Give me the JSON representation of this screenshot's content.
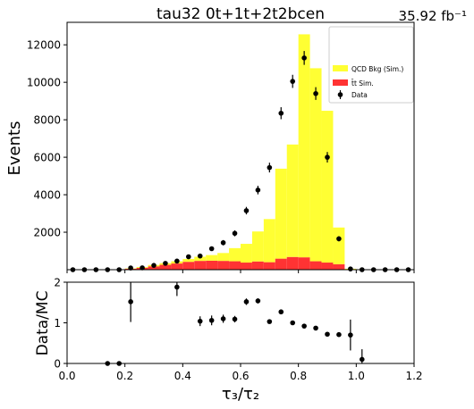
{
  "chart_data": [
    {
      "type": "bar",
      "title": "tau32  0t+1t+2t2bcen",
      "lumi": "35.92 fb⁻¹",
      "ylabel": "Events",
      "xlim": [
        0.0,
        1.2
      ],
      "ylim": [
        0,
        13200
      ],
      "yticks": [
        2000,
        4000,
        6000,
        8000,
        10000,
        12000
      ],
      "ytick_labels": [
        "2000",
        "4000",
        "6000",
        "8000",
        "10000",
        "12000"
      ],
      "legend_position": "top-right",
      "bin_edges": [
        0.0,
        0.04,
        0.08,
        0.12,
        0.16,
        0.2,
        0.24,
        0.28,
        0.32,
        0.36,
        0.4,
        0.44,
        0.48,
        0.52,
        0.56,
        0.6,
        0.64,
        0.68,
        0.72,
        0.76,
        0.8,
        0.84,
        0.88,
        0.92,
        0.96,
        1.0,
        1.04,
        1.08,
        1.12,
        1.16,
        1.2
      ],
      "series": [
        {
          "name": "QCD Bkg (Sim.)",
          "color": "#ffff33",
          "stacked": true,
          "values": [
            0,
            0,
            0,
            0,
            0,
            20,
            40,
            70,
            90,
            120,
            150,
            220,
            300,
            420,
            700,
            1000,
            1600,
            2300,
            4800,
            6000,
            11900,
            10300,
            8100,
            1960,
            40,
            0,
            0,
            0,
            0,
            0
          ]
        },
        {
          "name": "t̄t Sim.",
          "color": "#ff3333",
          "stacked": true,
          "values": [
            0,
            0,
            0,
            0,
            0,
            50,
            100,
            180,
            260,
            330,
            420,
            470,
            480,
            470,
            450,
            380,
            440,
            400,
            590,
            680,
            660,
            450,
            380,
            290,
            10,
            0,
            0,
            0,
            0,
            0
          ]
        },
        {
          "name": "Data",
          "color": "#000000",
          "kind": "errorbar",
          "x": [
            0.02,
            0.06,
            0.1,
            0.14,
            0.18,
            0.22,
            0.26,
            0.3,
            0.34,
            0.38,
            0.42,
            0.46,
            0.5,
            0.54,
            0.58,
            0.62,
            0.66,
            0.7,
            0.74,
            0.78,
            0.82,
            0.86,
            0.9,
            0.94,
            0.98,
            1.02,
            1.06,
            1.1,
            1.14,
            1.18
          ],
          "values": [
            0,
            0,
            0,
            0,
            0,
            90,
            100,
            230,
            340,
            460,
            690,
            730,
            1120,
            1440,
            1940,
            3150,
            4250,
            5450,
            8350,
            10050,
            11300,
            9400,
            6000,
            1650,
            40,
            0,
            0,
            0,
            0,
            0
          ],
          "errors": [
            0,
            0,
            0,
            0,
            0,
            40,
            40,
            60,
            70,
            80,
            90,
            90,
            120,
            140,
            160,
            200,
            230,
            260,
            320,
            350,
            370,
            340,
            280,
            140,
            20,
            0,
            0,
            0,
            0,
            0
          ]
        }
      ]
    },
    {
      "type": "scatter",
      "xlabel": "τ₃/τ₂",
      "ylabel": "Data/MC",
      "xlim": [
        0.0,
        1.2
      ],
      "ylim": [
        0,
        2
      ],
      "xticks": [
        0.0,
        0.2,
        0.4,
        0.6,
        0.8,
        1.0,
        1.2
      ],
      "xtick_labels": [
        "0.0",
        "0.2",
        "0.4",
        "0.6",
        "0.8",
        "1.0",
        "1.2"
      ],
      "yticks": [
        0,
        1,
        2
      ],
      "ytick_labels": [
        "0",
        "1",
        "2"
      ],
      "x": [
        0.14,
        0.18,
        0.22,
        0.38,
        0.46,
        0.5,
        0.54,
        0.58,
        0.62,
        0.66,
        0.7,
        0.74,
        0.78,
        0.82,
        0.86,
        0.9,
        0.94,
        0.98,
        1.02
      ],
      "values": [
        0.0,
        0.0,
        1.52,
        1.88,
        1.04,
        1.06,
        1.1,
        1.09,
        1.52,
        1.54,
        1.03,
        1.27,
        1.0,
        0.92,
        0.87,
        0.72,
        0.71,
        0.7,
        0.1
      ],
      "errors": [
        0.0,
        0.0,
        0.5,
        0.22,
        0.12,
        0.12,
        0.1,
        0.08,
        0.08,
        0.06,
        0.05,
        0.04,
        0.04,
        0.03,
        0.03,
        0.04,
        0.05,
        0.38,
        0.25
      ]
    }
  ]
}
